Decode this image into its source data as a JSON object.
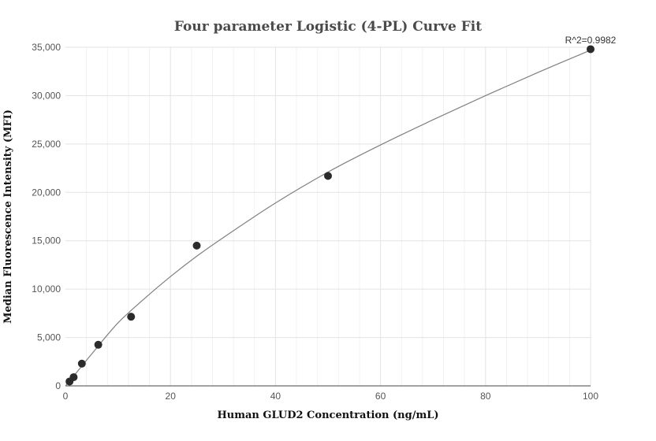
{
  "chart_data": {
    "type": "scatter",
    "title": "Four parameter Logistic (4-PL) Curve Fit",
    "xlabel": "Human GLUD2 Concentration (ng/mL)",
    "ylabel": "Median Fluorescence Intensity (MFI)",
    "xlim": [
      0,
      100
    ],
    "ylim": [
      0,
      35000
    ],
    "xticks": [
      0,
      20,
      40,
      60,
      80,
      100
    ],
    "yticks": [
      0,
      5000,
      10000,
      15000,
      20000,
      25000,
      30000,
      35000
    ],
    "xtick_labels": [
      "0",
      "20",
      "40",
      "60",
      "80",
      "100"
    ],
    "ytick_labels": [
      "0",
      "5,000",
      "10,000",
      "15,000",
      "20,000",
      "25,000",
      "30,000",
      "35,000"
    ],
    "grid": true,
    "points": [
      {
        "x": 0.78,
        "y": 450
      },
      {
        "x": 1.56,
        "y": 900
      },
      {
        "x": 3.125,
        "y": 2300
      },
      {
        "x": 6.25,
        "y": 4250
      },
      {
        "x": 12.5,
        "y": 7150
      },
      {
        "x": 25,
        "y": 14500
      },
      {
        "x": 50,
        "y": 21700
      },
      {
        "x": 100,
        "y": 34800
      }
    ],
    "fit_curve": [
      {
        "x": 0,
        "y": 0
      },
      {
        "x": 2,
        "y": 1300
      },
      {
        "x": 5,
        "y": 3300
      },
      {
        "x": 10,
        "y": 6500
      },
      {
        "x": 15,
        "y": 9000
      },
      {
        "x": 20,
        "y": 11300
      },
      {
        "x": 25,
        "y": 13400
      },
      {
        "x": 30,
        "y": 15300
      },
      {
        "x": 40,
        "y": 18900
      },
      {
        "x": 50,
        "y": 22100
      },
      {
        "x": 60,
        "y": 24900
      },
      {
        "x": 70,
        "y": 27500
      },
      {
        "x": 80,
        "y": 30000
      },
      {
        "x": 90,
        "y": 32400
      },
      {
        "x": 100,
        "y": 34700
      }
    ],
    "annotation": "R^2=0.9982"
  },
  "colors": {
    "point": "#2b2b2b",
    "curve": "#808080",
    "grid": "#e3e3e3"
  }
}
